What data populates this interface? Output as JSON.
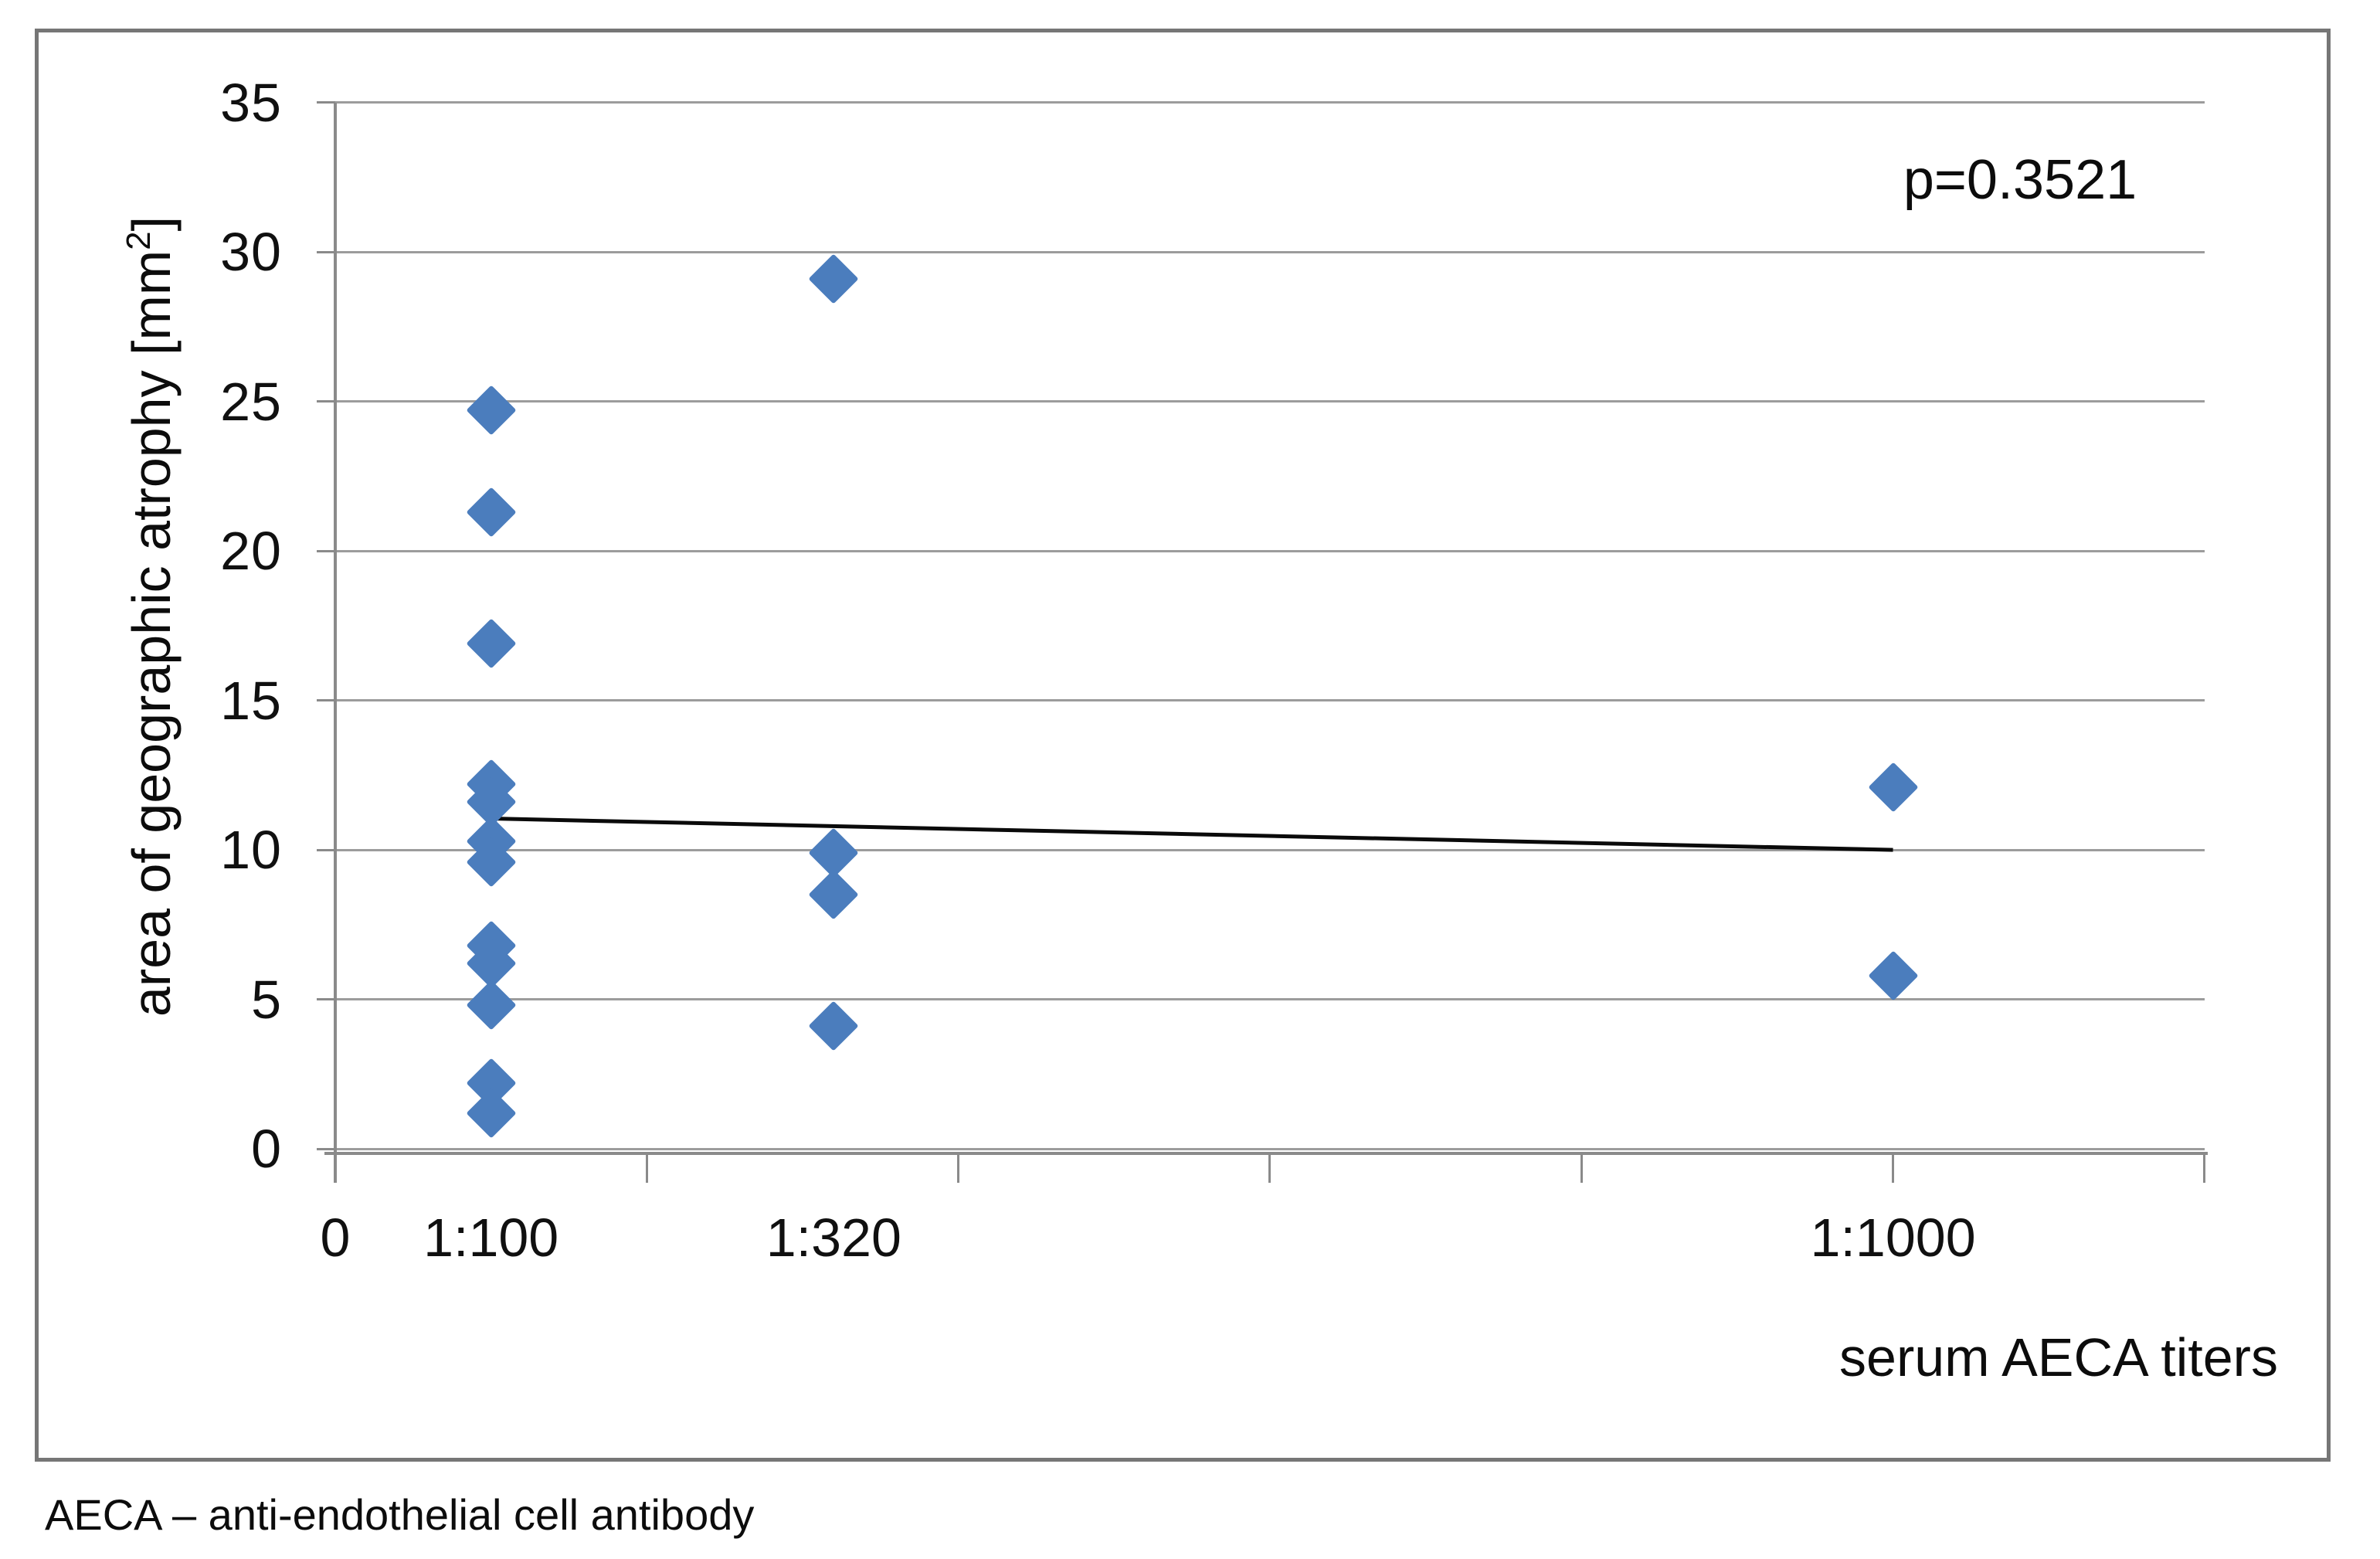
{
  "figure": {
    "p_annotation": "p=0.3521",
    "caption": "AECA – anti-endothelial cell antibody"
  },
  "chart_data": {
    "type": "scatter",
    "title": "",
    "xlabel": "serum AECA titers",
    "ylabel": "area of geographic atrophy [mm2]",
    "ylabel_prefix": "area of geographic atrophy [mm",
    "ylabel_sup": "2",
    "ylabel_suffix": "]",
    "marker": "diamond",
    "marker_color": "#4b7dbd",
    "gridline_color": "#9c9c9c",
    "axis_color": "#8a8a8a",
    "trendline_color": "#0a0a0a",
    "grid": true,
    "legend": false,
    "x_axis": {
      "min": 0,
      "max": 1200,
      "tick_step": 200,
      "tick_values": [
        0,
        200,
        400,
        600,
        800,
        1000,
        1200
      ]
    },
    "y_axis": {
      "min": 0,
      "max": 35,
      "tick_step": 5,
      "tick_values": [
        35,
        30,
        25,
        20,
        15,
        10,
        5,
        0
      ],
      "tick_labels": [
        "35",
        "30",
        "25",
        "20",
        "15",
        "10",
        "5",
        "0"
      ]
    },
    "x_text_labels": [
      {
        "x": 0,
        "label": "0"
      },
      {
        "x": 100,
        "label": "1:100"
      },
      {
        "x": 320,
        "label": "1:320"
      },
      {
        "x": 1000,
        "label": "1:1000"
      }
    ],
    "series": [
      {
        "name": "1:100",
        "x": 100,
        "values": [
          24.7,
          21.3,
          16.9,
          12.2,
          11.6,
          10.3,
          9.6,
          6.8,
          6.2,
          4.8,
          2.2,
          1.2
        ]
      },
      {
        "name": "1:320",
        "x": 320,
        "values": [
          29.1,
          9.9,
          8.5,
          4.1
        ]
      },
      {
        "name": "1:1000",
        "x": 1000,
        "values": [
          12.1,
          5.8
        ]
      }
    ],
    "trendline": {
      "x1": 100,
      "y1": 11.05,
      "x2": 1000,
      "y2": 10.0
    },
    "annotation": {
      "text": "p=0.3521",
      "position": "top-right"
    }
  }
}
